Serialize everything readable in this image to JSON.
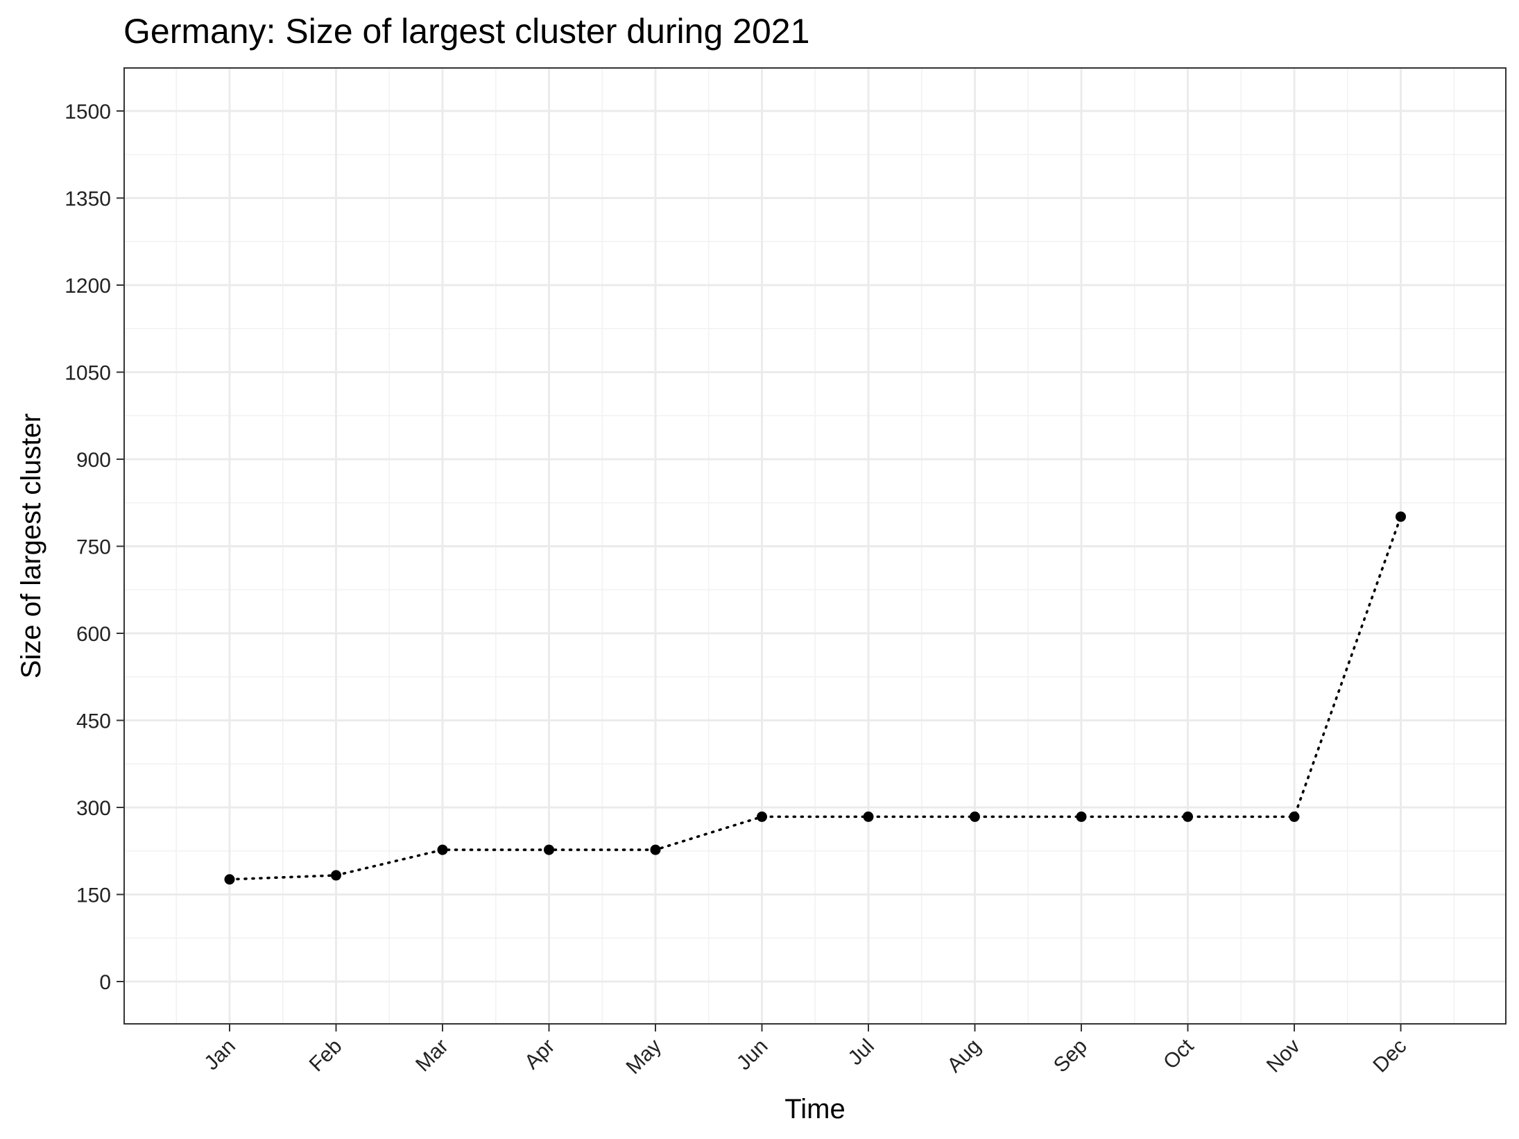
{
  "chart_data": {
    "type": "line",
    "title": "Germany: Size of largest cluster during 2021",
    "xlabel": "Time",
    "ylabel": "Size of largest cluster",
    "categories": [
      "Jan",
      "Feb",
      "Mar",
      "Apr",
      "May",
      "Jun",
      "Jul",
      "Aug",
      "Sep",
      "Oct",
      "Nov",
      "Dec"
    ],
    "series": [
      {
        "name": "Size of largest cluster",
        "values": [
          176,
          183,
          227,
          227,
          227,
          284,
          284,
          284,
          284,
          284,
          284,
          801
        ]
      }
    ],
    "ylim": [
      -70,
      1575
    ],
    "yticks": [
      0,
      150,
      300,
      450,
      600,
      750,
      900,
      1050,
      1200,
      1350,
      1500
    ],
    "ytick_labels": [
      "0",
      "150",
      "300",
      "450",
      "600",
      "750",
      "900",
      "1050",
      "1200",
      "1350",
      "1500"
    ],
    "grid": true,
    "line_style": "dotted",
    "colors": {
      "series": "#000000",
      "grid_major": "#ebebeb",
      "grid_minor": "#f2f2f2",
      "panel_border": "#333333",
      "background": "#ffffff"
    }
  }
}
